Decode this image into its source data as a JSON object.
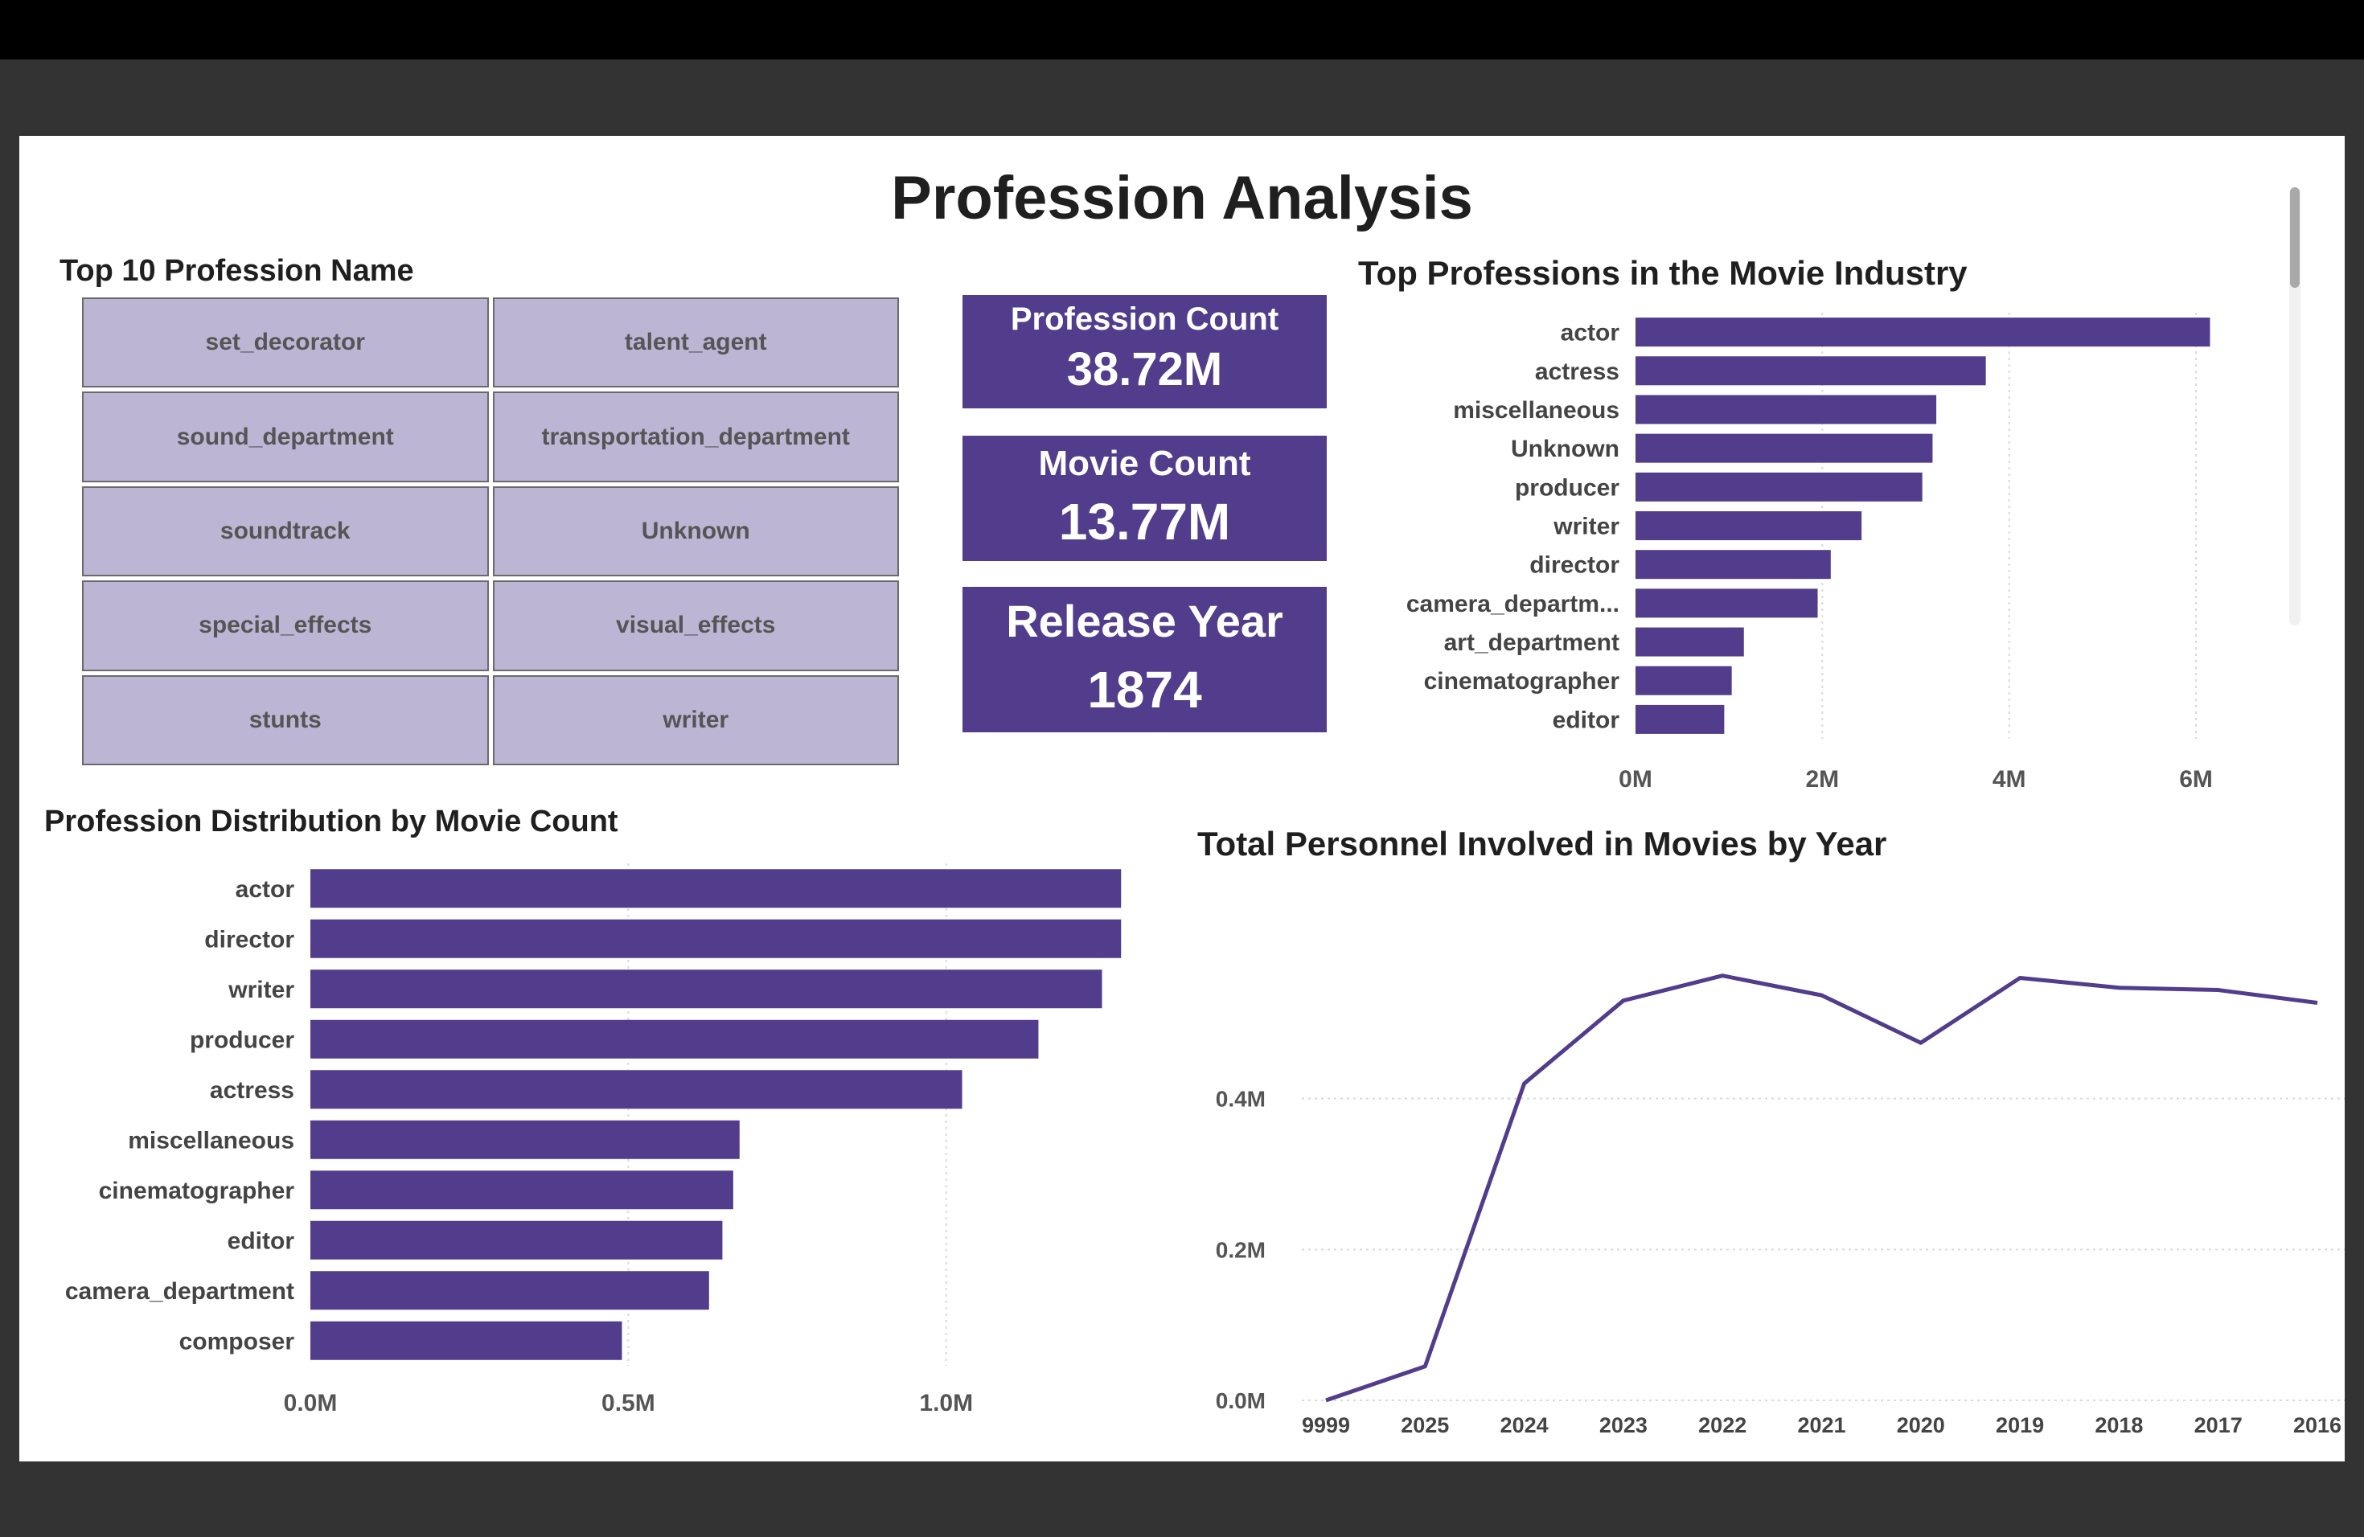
{
  "page": {
    "title": "Profession Analysis"
  },
  "top_professions_table": {
    "title": "Top 10 Profession Name",
    "cells": [
      "set_decorator",
      "talent_agent",
      "sound_department",
      "transportation_department",
      "soundtrack",
      "Unknown",
      "special_effects",
      "visual_effects",
      "stunts",
      "writer"
    ]
  },
  "kpis": {
    "profession_count": {
      "label": "Profession Count",
      "value": "38.72M"
    },
    "movie_count": {
      "label": "Movie Count",
      "value": "13.77M"
    },
    "release_year": {
      "label": "Release Year",
      "value": "1874"
    }
  },
  "colors": {
    "accent": "#523c8c",
    "tile": "#bcb6d4",
    "background": "#ffffff",
    "frame": "#333333"
  },
  "chart_data": [
    {
      "id": "top_professions",
      "type": "bar",
      "orientation": "horizontal",
      "title": "Top Professions in the Movie Industry",
      "categories": [
        "actor",
        "actress",
        "miscellaneous",
        "Unknown",
        "producer",
        "writer",
        "director",
        "camera_departm...",
        "art_department",
        "cinematographer",
        "editor"
      ],
      "values": [
        6.15,
        3.75,
        3.22,
        3.18,
        3.07,
        2.42,
        2.09,
        1.95,
        1.16,
        1.03,
        0.95
      ],
      "value_unit": "M",
      "xlim": [
        0,
        6.8
      ],
      "xticks": [
        "0M",
        "2M",
        "4M",
        "6M"
      ],
      "xtick_values": [
        0,
        2,
        4,
        6
      ],
      "grid": true,
      "scrollbar": true
    },
    {
      "id": "distribution_by_movie_count",
      "type": "bar",
      "orientation": "horizontal",
      "title": "Profession Distribution by Movie Count",
      "categories": [
        "actor",
        "director",
        "writer",
        "producer",
        "actress",
        "miscellaneous",
        "cinematographer",
        "editor",
        "camera_department",
        "composer"
      ],
      "values": [
        1.275,
        1.275,
        1.245,
        1.145,
        1.025,
        0.675,
        0.665,
        0.648,
        0.627,
        0.49
      ],
      "value_unit": "M",
      "xlim": [
        0,
        1.3
      ],
      "xticks": [
        "0.0M",
        "0.5M",
        "1.0M"
      ],
      "xtick_values": [
        0,
        0.5,
        1.0
      ],
      "grid": true
    },
    {
      "id": "personnel_by_year",
      "type": "line",
      "title": "Total Personnel Involved in Movies by Year",
      "x": [
        "9999",
        "2025",
        "2024",
        "2023",
        "2022",
        "2021",
        "2020",
        "2019",
        "2018",
        "2017",
        "2016"
      ],
      "values": [
        0.0,
        0.045,
        0.42,
        0.53,
        0.563,
        0.537,
        0.474,
        0.56,
        0.547,
        0.544,
        0.527
      ],
      "value_unit": "M",
      "ylim": [
        0,
        0.6
      ],
      "yticks": [
        "0.0M",
        "0.2M",
        "0.4M"
      ],
      "ytick_values": [
        0,
        0.2,
        0.4
      ],
      "grid": true
    }
  ]
}
